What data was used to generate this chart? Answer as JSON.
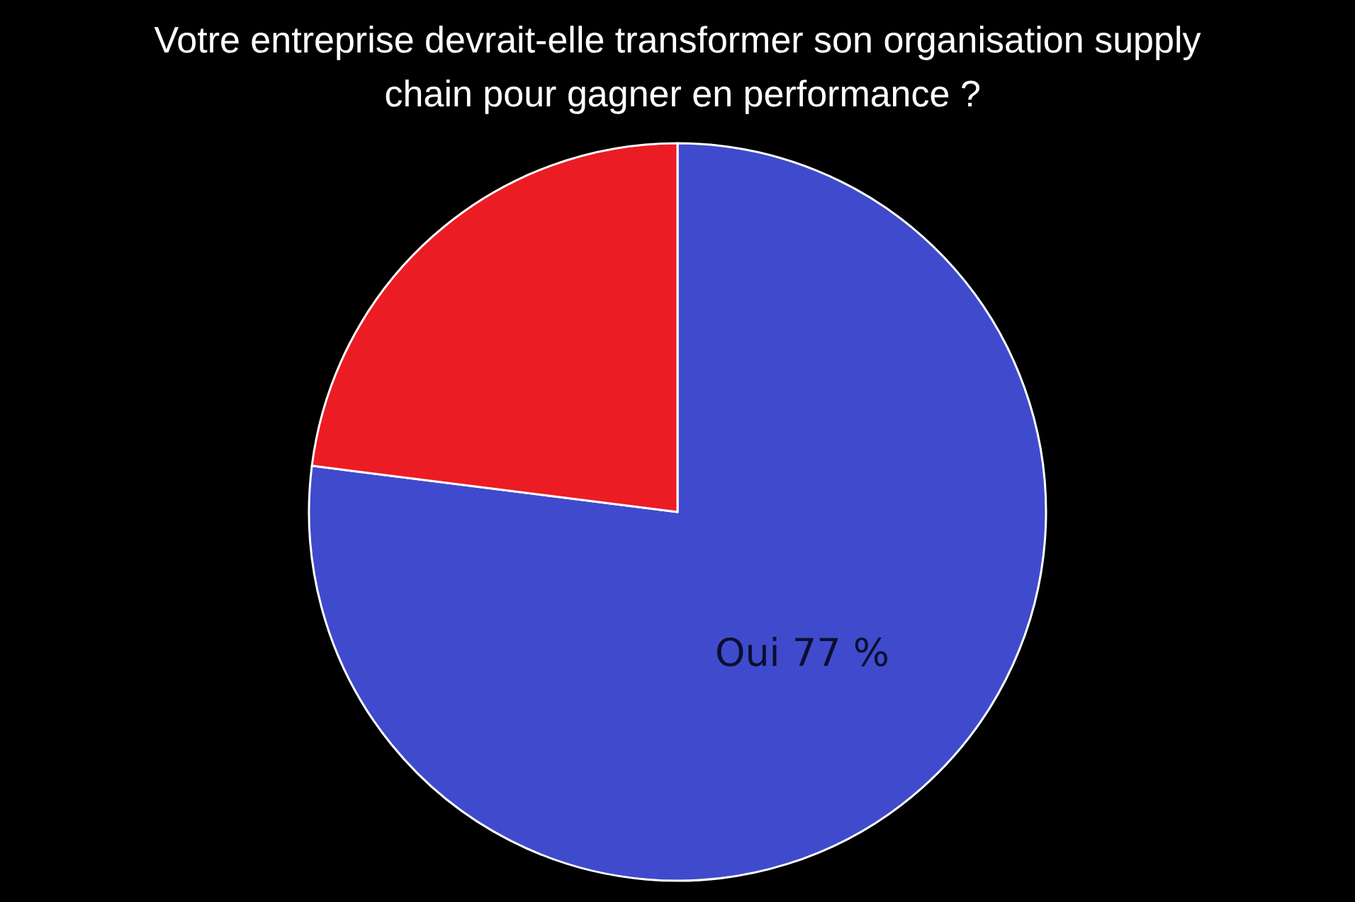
{
  "chart_data": {
    "type": "pie",
    "title": "Votre entreprise devrait-elle transformer son organisation supply chain pour gagner en performance ?",
    "categories": [
      "Oui",
      null
    ],
    "values": [
      77,
      23
    ],
    "colors": [
      "#3f4bcc",
      "#ec1c24"
    ],
    "value_labels": [
      "77 %",
      null
    ],
    "legend": false
  }
}
